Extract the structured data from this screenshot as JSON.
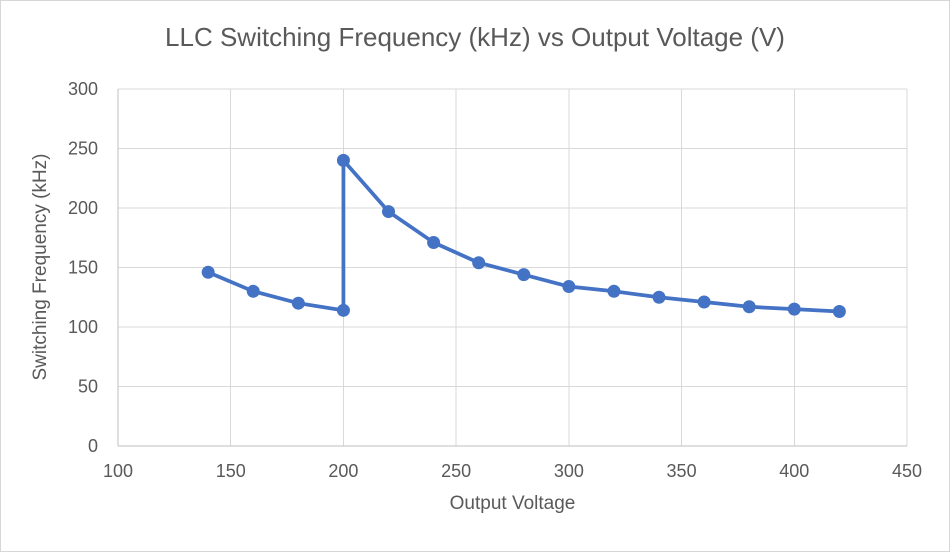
{
  "chart_data": {
    "type": "line",
    "title": "LLC Switching Frequency (kHz) vs Output Voltage (V)",
    "xlabel": "Output Voltage",
    "ylabel": "Switching Frequency (kHz)",
    "xlim": [
      100,
      450
    ],
    "ylim": [
      0,
      300
    ],
    "x_ticks": [
      100,
      150,
      200,
      250,
      300,
      350,
      400,
      450
    ],
    "y_ticks": [
      0,
      50,
      100,
      150,
      200,
      250,
      300
    ],
    "grid": true,
    "legend": false,
    "series": [
      {
        "name": "Switching Frequency (kHz)",
        "color": "#4472C4",
        "marker": "circle",
        "x": [
          140,
          160,
          180,
          200,
          200,
          220,
          240,
          260,
          280,
          300,
          320,
          340,
          360,
          380,
          400,
          420
        ],
        "values": [
          146,
          130,
          120,
          114,
          240,
          197,
          171,
          154,
          144,
          134,
          130,
          125,
          121,
          117,
          115,
          113
        ]
      }
    ]
  },
  "colors": {
    "series": "#4472C4",
    "gridline": "#D9D9D9",
    "axis_line": "#BFBFBF",
    "text": "#595959",
    "background": "#FFFFFF",
    "border": "#D6D6D6"
  }
}
